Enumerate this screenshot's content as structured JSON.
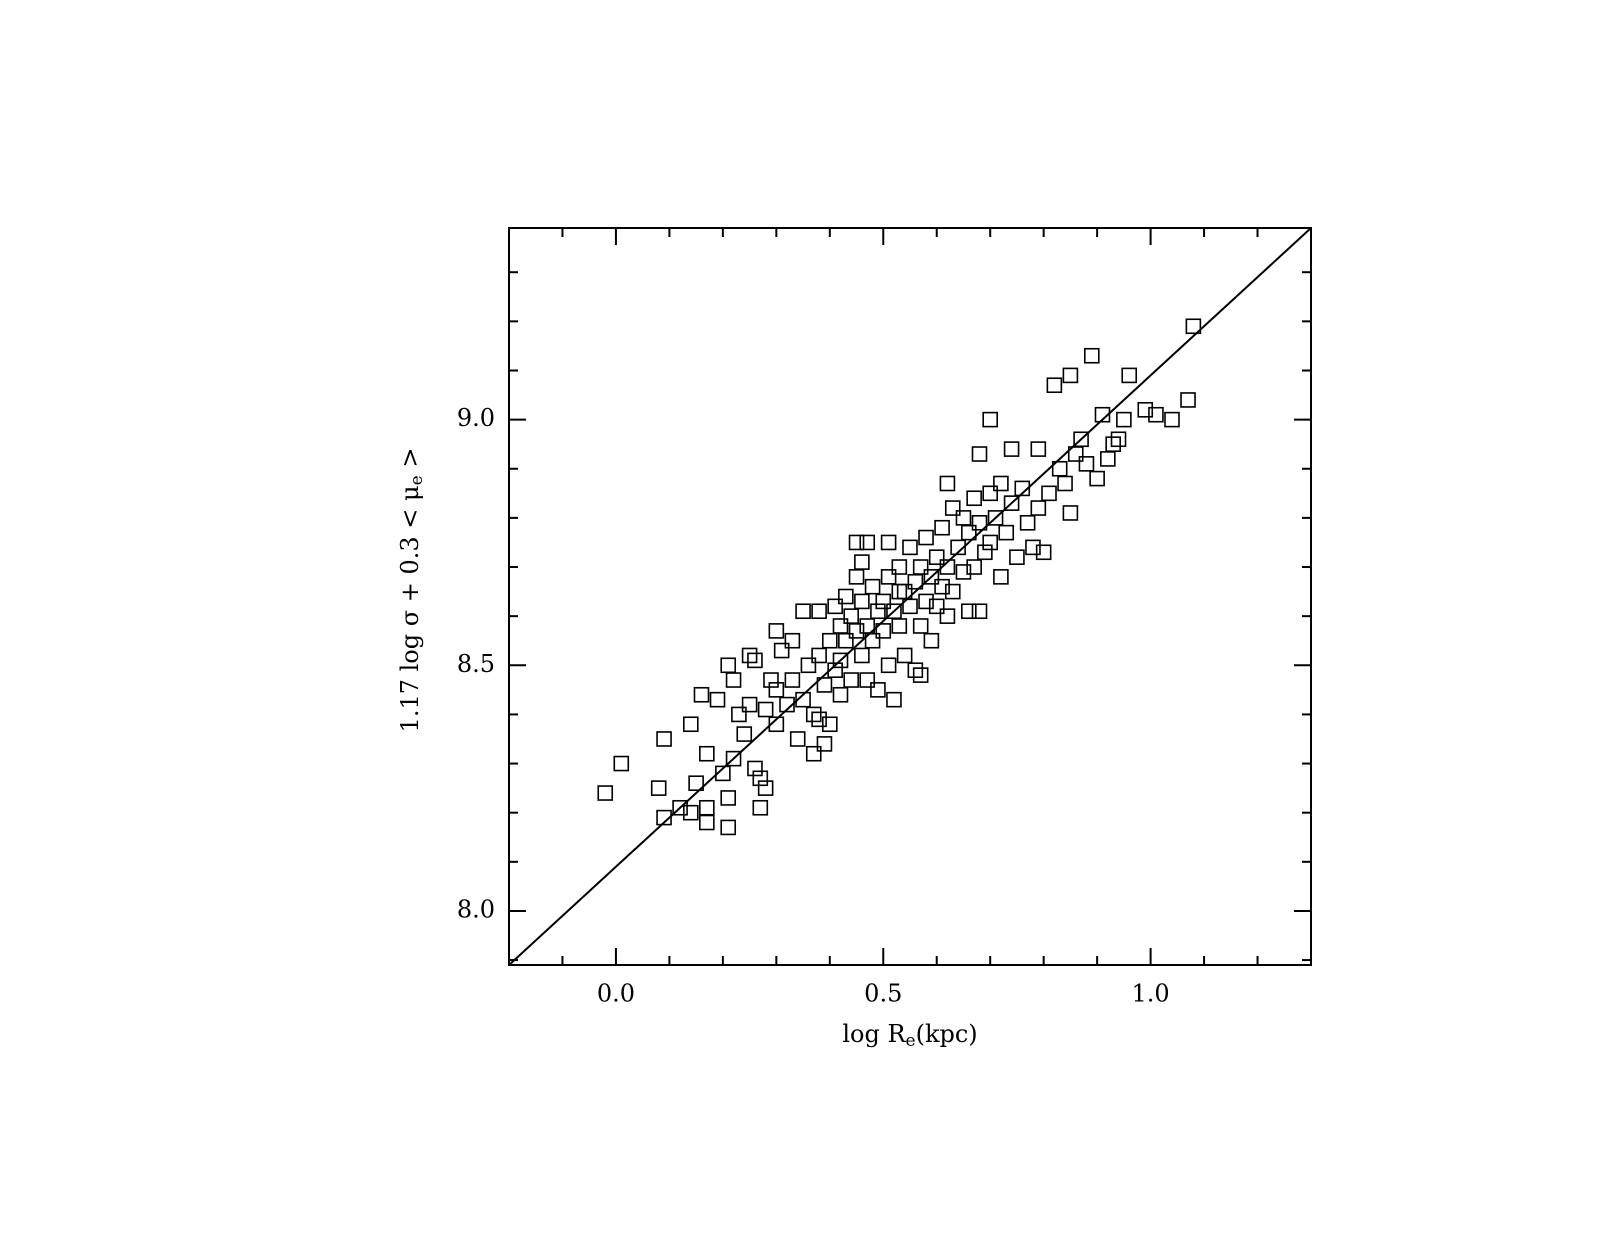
{
  "chart_data": {
    "type": "scatter",
    "x_label": {
      "main": "log R",
      "sub": "e",
      "suffix": "(kpc)"
    },
    "y_label": {
      "main": "1.17 log σ + 0.3 < μ",
      "sub": "e",
      "suffix": " >"
    },
    "xlim": [
      -0.2,
      1.3
    ],
    "ylim": [
      7.89,
      9.39
    ],
    "xticks": [
      {
        "value": 0,
        "label": "0.0"
      },
      0.5,
      {
        "value": 1,
        "label": "1.0"
      }
    ],
    "yticks": [
      {
        "value": 8,
        "label": "8.0"
      },
      8.5,
      {
        "value": 9,
        "label": "9.0"
      }
    ],
    "xminor": [
      -0.1,
      0.1,
      0.2,
      0.3,
      0.4,
      0.6,
      0.7,
      0.8,
      0.9,
      1.1,
      1.2
    ],
    "yminor": [
      7.9,
      8.1,
      8.2,
      8.3,
      8.4,
      8.6,
      8.7,
      8.8,
      8.9,
      9.1,
      9.2,
      9.3
    ],
    "marker": "square",
    "color": "#000000",
    "fit_line": {
      "x": [
        -0.2,
        1.3
      ],
      "y": [
        7.89,
        9.39
      ]
    },
    "series": [
      {
        "x": [
          -0.02,
          0.01,
          0.08,
          0.09,
          0.09,
          0.21,
          0.17,
          1.08,
          0.89,
          0.96,
          0.85,
          0.82,
          1.07,
          1.04,
          0.7,
          0.45,
          0.51,
          0.68,
          0.66,
          0.27,
          0.39,
          0.37,
          0.99,
          1.01,
          0.94,
          0.85,
          0.62,
          0.74,
          0.79,
          0.68,
          0.12,
          0.14,
          0.15,
          0.16,
          0.14,
          0.17,
          0.17,
          0.19,
          0.2,
          0.21,
          0.21,
          0.22,
          0.22,
          0.23,
          0.24,
          0.25,
          0.25,
          0.26,
          0.26,
          0.27,
          0.28,
          0.28,
          0.29,
          0.3,
          0.3,
          0.3,
          0.31,
          0.32,
          0.33,
          0.33,
          0.34,
          0.35,
          0.35,
          0.36,
          0.37,
          0.38,
          0.38,
          0.39,
          0.4,
          0.4,
          0.41,
          0.41,
          0.42,
          0.42,
          0.43,
          0.43,
          0.44,
          0.44,
          0.45,
          0.45,
          0.46,
          0.46,
          0.47,
          0.47,
          0.48,
          0.48,
          0.49,
          0.49,
          0.5,
          0.5,
          0.51,
          0.51,
          0.52,
          0.52,
          0.53,
          0.53,
          0.54,
          0.54,
          0.55,
          0.55,
          0.56,
          0.56,
          0.57,
          0.57,
          0.58,
          0.58,
          0.59,
          0.59,
          0.6,
          0.6,
          0.61,
          0.61,
          0.62,
          0.63,
          0.63,
          0.64,
          0.65,
          0.65,
          0.66,
          0.67,
          0.67,
          0.68,
          0.69,
          0.7,
          0.7,
          0.71,
          0.72,
          0.72,
          0.73,
          0.74,
          0.75,
          0.76,
          0.77,
          0.78,
          0.79,
          0.8,
          0.81,
          0.83,
          0.84,
          0.86,
          0.87,
          0.88,
          0.9,
          0.91,
          0.92,
          0.95,
          0.93,
          0.62,
          0.57,
          0.42,
          0.38,
          0.47,
          0.53,
          0.46
        ],
        "values": [
          8.24,
          8.3,
          8.25,
          8.19,
          8.35,
          8.17,
          8.18,
          9.19,
          9.13,
          9.09,
          9.09,
          9.07,
          9.04,
          9.0,
          9.0,
          8.75,
          8.75,
          8.61,
          8.61,
          8.21,
          8.34,
          8.32,
          9.02,
          9.01,
          8.96,
          8.81,
          8.87,
          8.94,
          8.94,
          8.93,
          8.21,
          8.2,
          8.26,
          8.44,
          8.38,
          8.32,
          8.21,
          8.43,
          8.28,
          8.23,
          8.5,
          8.47,
          8.31,
          8.4,
          8.36,
          8.42,
          8.52,
          8.29,
          8.51,
          8.27,
          8.25,
          8.41,
          8.47,
          8.57,
          8.45,
          8.38,
          8.53,
          8.42,
          8.55,
          8.47,
          8.35,
          8.43,
          8.61,
          8.5,
          8.4,
          8.52,
          8.61,
          8.46,
          8.55,
          8.38,
          8.62,
          8.49,
          8.58,
          8.51,
          8.64,
          8.55,
          8.47,
          8.6,
          8.57,
          8.68,
          8.52,
          8.63,
          8.58,
          8.47,
          8.66,
          8.55,
          8.61,
          8.45,
          8.63,
          8.57,
          8.68,
          8.5,
          8.61,
          8.43,
          8.7,
          8.58,
          8.65,
          8.52,
          8.74,
          8.62,
          8.67,
          8.49,
          8.7,
          8.58,
          8.76,
          8.63,
          8.68,
          8.55,
          8.72,
          8.62,
          8.78,
          8.66,
          8.7,
          8.82,
          8.65,
          8.74,
          8.8,
          8.69,
          8.77,
          8.84,
          8.7,
          8.79,
          8.73,
          8.85,
          8.75,
          8.8,
          8.68,
          8.87,
          8.77,
          8.83,
          8.72,
          8.86,
          8.79,
          8.74,
          8.82,
          8.73,
          8.85,
          8.9,
          8.87,
          8.93,
          8.96,
          8.91,
          8.88,
          9.01,
          8.92,
          9.0,
          8.95,
          8.6,
          8.48,
          8.44,
          8.39,
          8.75,
          8.65,
          8.71
        ]
      }
    ]
  }
}
